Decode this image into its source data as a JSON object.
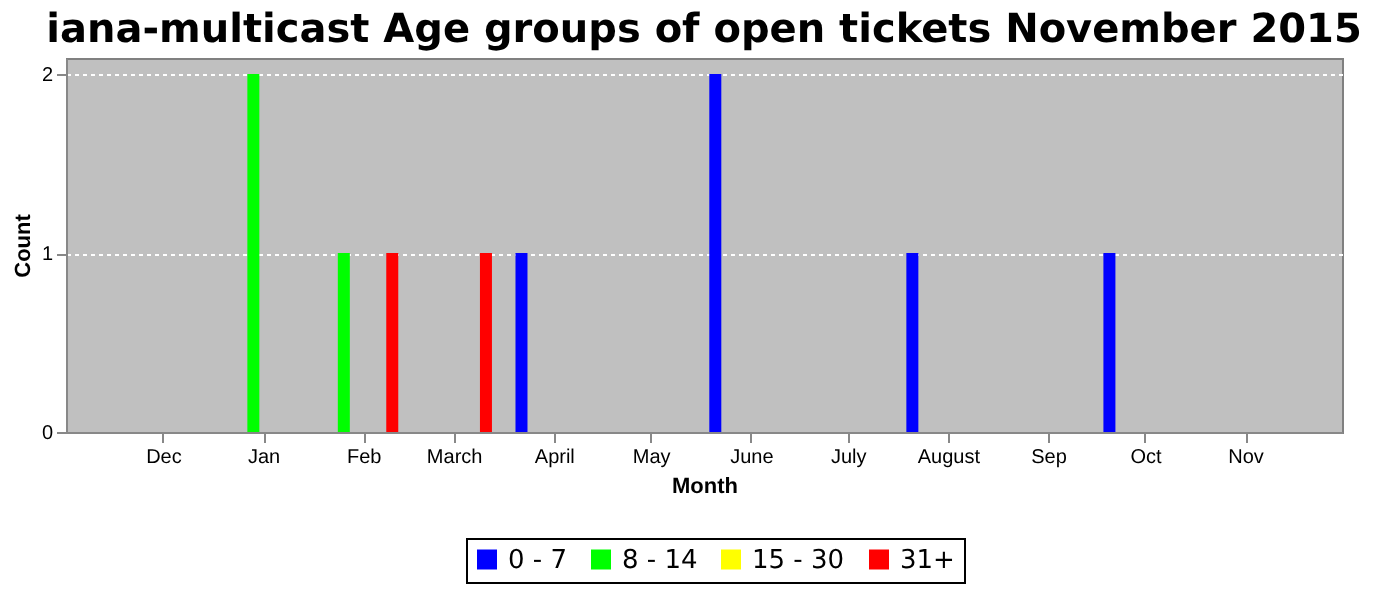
{
  "chart_data": {
    "type": "bar",
    "title": "iana-multicast Age groups of open tickets November 2015",
    "xlabel": "Month",
    "ylabel": "Count",
    "x": [
      "2014-12-29",
      "2015-01-26",
      "2015-02-10",
      "2015-03-11",
      "2015-03-22",
      "2015-05-21",
      "2015-07-21",
      "2015-09-20"
    ],
    "series": [
      {
        "name": "0 - 7",
        "color": "#0000ff",
        "values": [
          null,
          null,
          null,
          null,
          1,
          2,
          1,
          1
        ]
      },
      {
        "name": "8 - 14",
        "color": "#00ff00",
        "values": [
          2,
          1,
          null,
          null,
          null,
          null,
          null,
          null
        ]
      },
      {
        "name": "15 - 30",
        "color": "#ffff00",
        "values": [
          null,
          null,
          null,
          null,
          null,
          null,
          null,
          null
        ]
      },
      {
        "name": "31+",
        "color": "#ff0000",
        "values": [
          null,
          null,
          1,
          1,
          null,
          null,
          null,
          null
        ]
      }
    ],
    "xlim": [
      "2014-11-01",
      "2015-12-01"
    ],
    "xticks": [
      {
        "value": "2014-12-01",
        "label": "Dec"
      },
      {
        "value": "2015-01-01",
        "label": "Jan"
      },
      {
        "value": "2015-02-01",
        "label": "Feb"
      },
      {
        "value": "2015-03-01",
        "label": "March"
      },
      {
        "value": "2015-04-01",
        "label": "April"
      },
      {
        "value": "2015-05-01",
        "label": "May"
      },
      {
        "value": "2015-06-01",
        "label": "June"
      },
      {
        "value": "2015-07-01",
        "label": "July"
      },
      {
        "value": "2015-08-01",
        "label": "August"
      },
      {
        "value": "2015-09-01",
        "label": "Sep"
      },
      {
        "value": "2015-10-01",
        "label": "Oct"
      },
      {
        "value": "2015-11-01",
        "label": "Nov"
      }
    ],
    "ylim": [
      0,
      2.09
    ],
    "yticks": [
      0,
      1,
      2
    ],
    "grid": "y",
    "legend": "bottom"
  }
}
